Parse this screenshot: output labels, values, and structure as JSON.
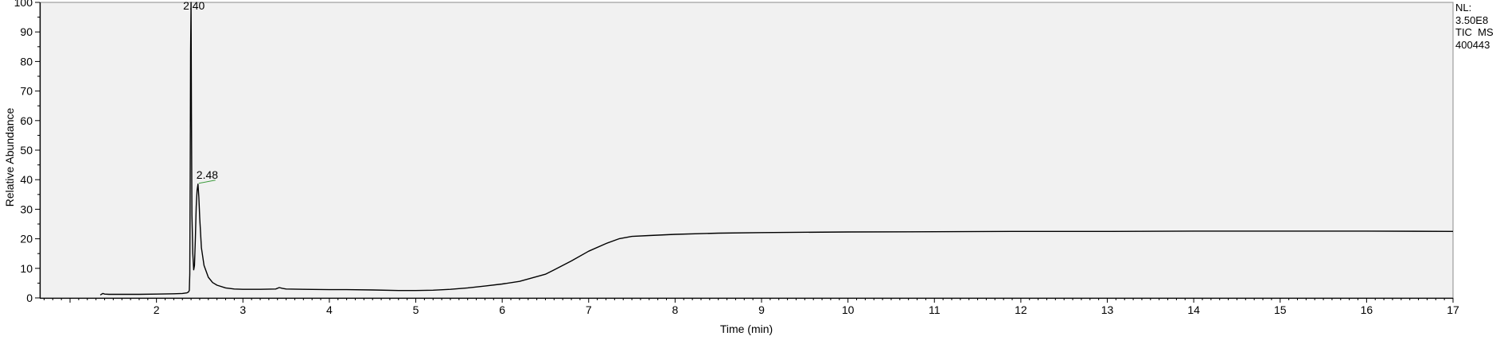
{
  "chart_data": {
    "type": "line",
    "xlabel": "Time (min)",
    "ylabel": "Relative Abundance",
    "xlim": [
      0.65,
      17
    ],
    "ylim": [
      0,
      100
    ],
    "x_ticks": [
      2,
      3,
      4,
      5,
      6,
      7,
      8,
      9,
      10,
      11,
      12,
      13,
      14,
      15,
      16,
      17
    ],
    "y_ticks": [
      0,
      10,
      20,
      30,
      40,
      50,
      60,
      70,
      80,
      90,
      100
    ],
    "grid": false,
    "series": [
      {
        "x": [
          1.35,
          1.38,
          1.4,
          1.45,
          1.6,
          1.8,
          2.0,
          2.2,
          2.3,
          2.35,
          2.37,
          2.38,
          2.385,
          2.39,
          2.395,
          2.4,
          2.405,
          2.41,
          2.42,
          2.43,
          2.44,
          2.45,
          2.46,
          2.47,
          2.48,
          2.49,
          2.5,
          2.52,
          2.55,
          2.6,
          2.65,
          2.7,
          2.8,
          2.9,
          3.0,
          3.2,
          3.38,
          3.42,
          3.46,
          3.5,
          3.7,
          4.0,
          4.2,
          4.5,
          4.8,
          5.0,
          5.2,
          5.4,
          5.6,
          5.8,
          6.0,
          6.2,
          6.4,
          6.5,
          6.6,
          6.8,
          7.0,
          7.2,
          7.35,
          7.5,
          7.7,
          8.0,
          8.5,
          9.0,
          10.0,
          11.0,
          12.0,
          13.0,
          14.0,
          15.0,
          16.0,
          17.0
        ],
        "y": [
          1.0,
          1.5,
          1.3,
          1.2,
          1.2,
          1.2,
          1.3,
          1.4,
          1.5,
          1.7,
          2.0,
          2.5,
          8,
          40,
          83,
          100,
          62,
          28,
          15,
          9.5,
          11,
          20,
          31,
          36.5,
          38.5,
          34,
          27,
          17,
          11,
          7,
          5.2,
          4.3,
          3.4,
          3.0,
          2.9,
          2.9,
          3.0,
          3.5,
          3.2,
          3.0,
          2.9,
          2.8,
          2.8,
          2.7,
          2.5,
          2.5,
          2.6,
          2.9,
          3.4,
          4.0,
          4.7,
          5.6,
          7.2,
          8.0,
          9.5,
          12.5,
          15.8,
          18.4,
          20.0,
          20.8,
          21.1,
          21.5,
          21.9,
          22.1,
          22.3,
          22.4,
          22.5,
          22.5,
          22.6,
          22.6,
          22.6,
          22.5
        ]
      }
    ],
    "annotations": [
      {
        "text": "2.40",
        "x": 2.4,
        "y": 100
      },
      {
        "text": "2.48",
        "x": 2.48,
        "y": 38.5
      }
    ],
    "info_lines": [
      "NL:",
      "3.50E8",
      "TIC  MS",
      "400443"
    ]
  }
}
